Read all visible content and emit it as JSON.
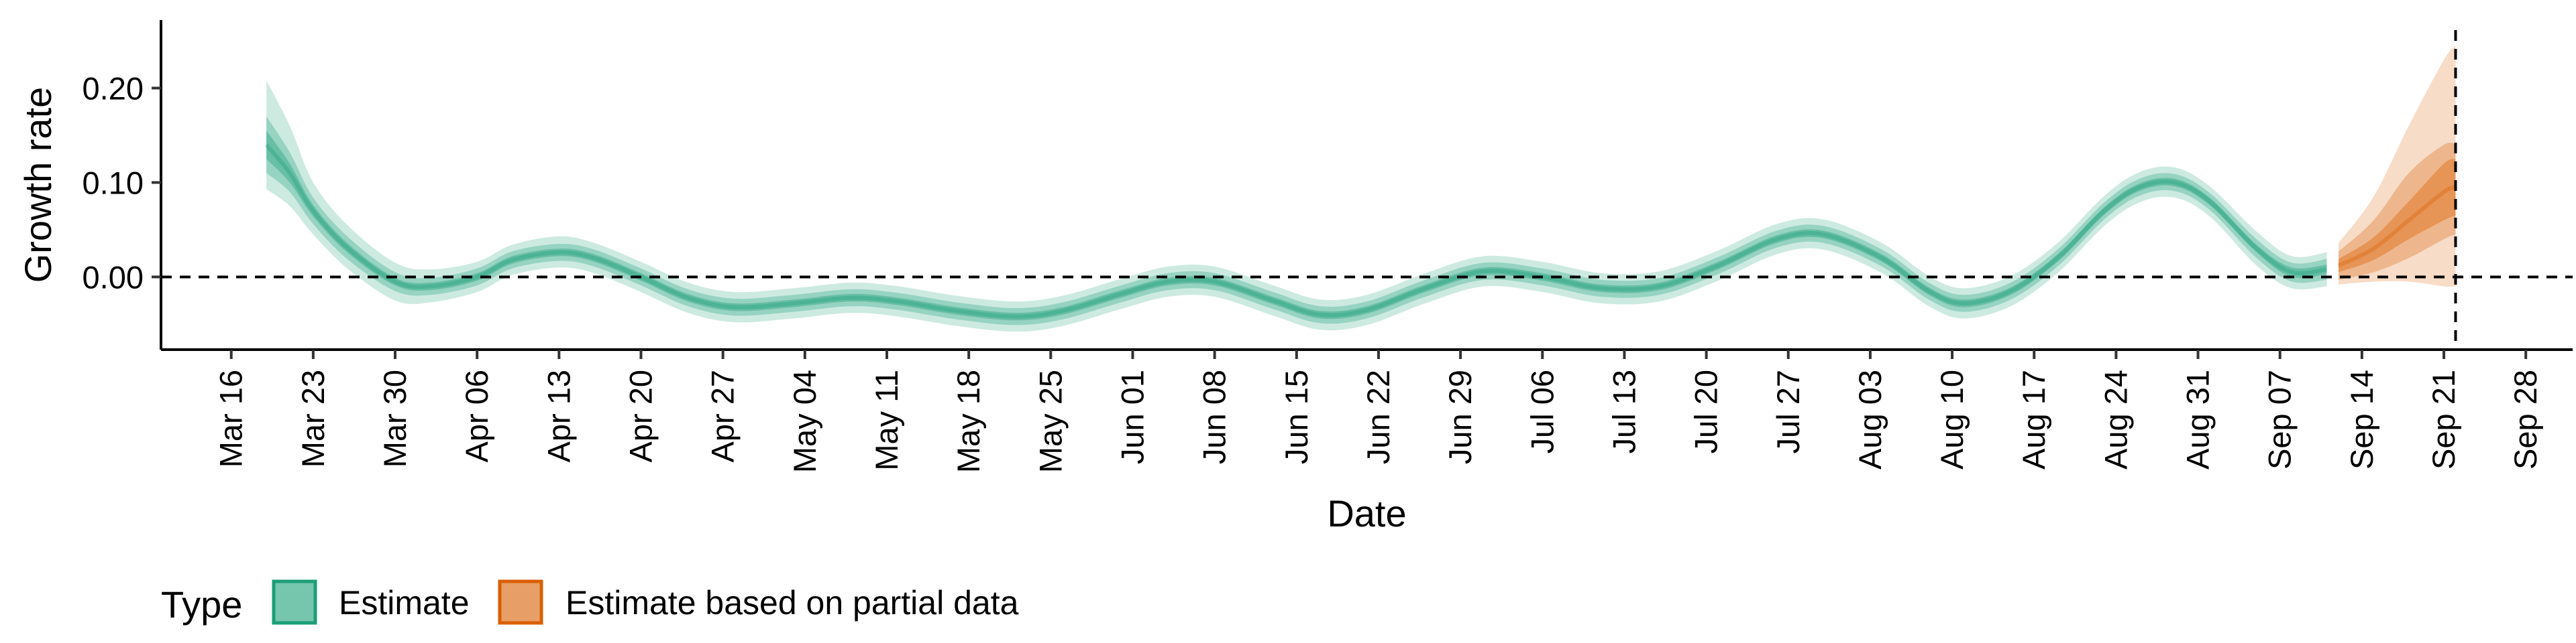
{
  "chart_data": {
    "type": "area",
    "xlabel": "Date",
    "ylabel": "Growth rate",
    "x_range": [
      "2020-03-10",
      "2020-10-02"
    ],
    "ylim": [
      -0.077,
      0.272
    ],
    "y_ticks": [
      0.0,
      0.1,
      0.2
    ],
    "y_tick_labels": [
      "0.00",
      "0.10",
      "0.20"
    ],
    "x_ticks": [
      "2020-03-16",
      "2020-03-23",
      "2020-03-30",
      "2020-04-06",
      "2020-04-13",
      "2020-04-20",
      "2020-04-27",
      "2020-05-04",
      "2020-05-11",
      "2020-05-18",
      "2020-05-25",
      "2020-06-01",
      "2020-06-08",
      "2020-06-15",
      "2020-06-22",
      "2020-06-29",
      "2020-07-06",
      "2020-07-13",
      "2020-07-20",
      "2020-07-27",
      "2020-08-03",
      "2020-08-10",
      "2020-08-17",
      "2020-08-24",
      "2020-08-31",
      "2020-09-07",
      "2020-09-14",
      "2020-09-21",
      "2020-09-28"
    ],
    "x_tick_labels": [
      "Mar 16",
      "Mar 23",
      "Mar 30",
      "Apr 06",
      "Apr 13",
      "Apr 20",
      "Apr 27",
      "May 04",
      "May 11",
      "May 18",
      "May 25",
      "Jun 01",
      "Jun 08",
      "Jun 15",
      "Jun 22",
      "Jun 29",
      "Jul 06",
      "Jul 13",
      "Jul 20",
      "Jul 27",
      "Aug 03",
      "Aug 10",
      "Aug 17",
      "Aug 24",
      "Aug 31",
      "Sep 07",
      "Sep 14",
      "Sep 21",
      "Sep 28"
    ],
    "hline_y": 0.0,
    "vline_x": "2020-09-22",
    "legend": {
      "title": "Type",
      "position": "bottom-left"
    },
    "grid": false,
    "series": [
      {
        "name": "Estimate",
        "color": "#1b9e77",
        "points": [
          {
            "x": "2020-03-19",
            "median": 0.14,
            "q25": [
              0.125,
              0.155
            ],
            "q75": [
              0.11,
              0.17
            ],
            "q90": [
              0.093,
              0.208
            ]
          },
          {
            "x": "2020-03-21",
            "median": 0.11,
            "q25": [
              0.1,
              0.12
            ],
            "q75": [
              0.09,
              0.132
            ],
            "q90": [
              0.075,
              0.16
            ]
          },
          {
            "x": "2020-03-23",
            "median": 0.07,
            "q25": [
              0.064,
              0.076
            ],
            "q75": [
              0.056,
              0.084
            ],
            "q90": [
              0.045,
              0.1
            ]
          },
          {
            "x": "2020-03-26",
            "median": 0.03,
            "q25": [
              0.025,
              0.035
            ],
            "q75": [
              0.018,
              0.042
            ],
            "q90": [
              0.008,
              0.054
            ]
          },
          {
            "x": "2020-03-30",
            "median": -0.005,
            "q25": [
              -0.009,
              -0.001
            ],
            "q75": [
              -0.015,
              0.005
            ],
            "q90": [
              -0.025,
              0.015
            ]
          },
          {
            "x": "2020-04-02",
            "median": -0.01,
            "q25": [
              -0.014,
              -0.006
            ],
            "q75": [
              -0.019,
              -0.001
            ],
            "q90": [
              -0.027,
              0.008
            ]
          },
          {
            "x": "2020-04-06",
            "median": 0.0,
            "q25": [
              -0.004,
              0.004
            ],
            "q75": [
              -0.009,
              0.009
            ],
            "q90": [
              -0.016,
              0.016
            ]
          },
          {
            "x": "2020-04-09",
            "median": 0.018,
            "q25": [
              0.014,
              0.022
            ],
            "q75": [
              0.009,
              0.027
            ],
            "q90": [
              0.002,
              0.034
            ]
          },
          {
            "x": "2020-04-13",
            "median": 0.026,
            "q25": [
              0.022,
              0.03
            ],
            "q75": [
              0.017,
              0.035
            ],
            "q90": [
              0.01,
              0.043
            ]
          },
          {
            "x": "2020-04-16",
            "median": 0.02,
            "q25": [
              0.016,
              0.024
            ],
            "q75": [
              0.011,
              0.029
            ],
            "q90": [
              0.004,
              0.036
            ]
          },
          {
            "x": "2020-04-20",
            "median": 0.0,
            "q25": [
              -0.004,
              0.004
            ],
            "q75": [
              -0.009,
              0.009
            ],
            "q90": [
              -0.016,
              0.016
            ]
          },
          {
            "x": "2020-04-24",
            "median": -0.022,
            "q25": [
              -0.026,
              -0.018
            ],
            "q75": [
              -0.031,
              -0.013
            ],
            "q90": [
              -0.038,
              -0.006
            ]
          },
          {
            "x": "2020-04-28",
            "median": -0.032,
            "q25": [
              -0.036,
              -0.028
            ],
            "q75": [
              -0.041,
              -0.023
            ],
            "q90": [
              -0.048,
              -0.016
            ]
          },
          {
            "x": "2020-05-03",
            "median": -0.028,
            "q25": [
              -0.032,
              -0.024
            ],
            "q75": [
              -0.037,
              -0.019
            ],
            "q90": [
              -0.044,
              -0.012
            ]
          },
          {
            "x": "2020-05-08",
            "median": -0.022,
            "q25": [
              -0.026,
              -0.018
            ],
            "q75": [
              -0.031,
              -0.013
            ],
            "q90": [
              -0.038,
              -0.006
            ]
          },
          {
            "x": "2020-05-12",
            "median": -0.026,
            "q25": [
              -0.03,
              -0.022
            ],
            "q75": [
              -0.035,
              -0.017
            ],
            "q90": [
              -0.042,
              -0.01
            ]
          },
          {
            "x": "2020-05-17",
            "median": -0.036,
            "q25": [
              -0.04,
              -0.032
            ],
            "q75": [
              -0.045,
              -0.027
            ],
            "q90": [
              -0.052,
              -0.02
            ]
          },
          {
            "x": "2020-05-22",
            "median": -0.042,
            "q25": [
              -0.046,
              -0.038
            ],
            "q75": [
              -0.051,
              -0.033
            ],
            "q90": [
              -0.058,
              -0.026
            ]
          },
          {
            "x": "2020-05-26",
            "median": -0.036,
            "q25": [
              -0.04,
              -0.032
            ],
            "q75": [
              -0.045,
              -0.027
            ],
            "q90": [
              -0.052,
              -0.02
            ]
          },
          {
            "x": "2020-05-31",
            "median": -0.018,
            "q25": [
              -0.022,
              -0.014
            ],
            "q75": [
              -0.027,
              -0.009
            ],
            "q90": [
              -0.034,
              -0.002
            ]
          },
          {
            "x": "2020-06-04",
            "median": -0.005,
            "q25": [
              -0.009,
              -0.001
            ],
            "q75": [
              -0.014,
              0.004
            ],
            "q90": [
              -0.021,
              0.011
            ]
          },
          {
            "x": "2020-06-08",
            "median": -0.005,
            "q25": [
              -0.009,
              -0.001
            ],
            "q75": [
              -0.014,
              0.004
            ],
            "q90": [
              -0.021,
              0.011
            ]
          },
          {
            "x": "2020-06-13",
            "median": -0.025,
            "q25": [
              -0.029,
              -0.021
            ],
            "q75": [
              -0.034,
              -0.016
            ],
            "q90": [
              -0.041,
              -0.009
            ]
          },
          {
            "x": "2020-06-17",
            "median": -0.04,
            "q25": [
              -0.044,
              -0.036
            ],
            "q75": [
              -0.049,
              -0.031
            ],
            "q90": [
              -0.056,
              -0.024
            ]
          },
          {
            "x": "2020-06-21",
            "median": -0.035,
            "q25": [
              -0.039,
              -0.031
            ],
            "q75": [
              -0.044,
              -0.026
            ],
            "q90": [
              -0.051,
              -0.019
            ]
          },
          {
            "x": "2020-06-26",
            "median": -0.012,
            "q25": [
              -0.016,
              -0.008
            ],
            "q75": [
              -0.021,
              -0.003
            ],
            "q90": [
              -0.028,
              0.004
            ]
          },
          {
            "x": "2020-07-01",
            "median": 0.006,
            "q25": [
              0.002,
              0.01
            ],
            "q75": [
              -0.003,
              0.015
            ],
            "q90": [
              -0.01,
              0.022
            ]
          },
          {
            "x": "2020-07-06",
            "median": 0.0,
            "q25": [
              -0.004,
              0.004
            ],
            "q75": [
              -0.009,
              0.009
            ],
            "q90": [
              -0.016,
              0.016
            ]
          },
          {
            "x": "2020-07-11",
            "median": -0.012,
            "q25": [
              -0.016,
              -0.008
            ],
            "q75": [
              -0.021,
              -0.003
            ],
            "q90": [
              -0.028,
              0.004
            ]
          },
          {
            "x": "2020-07-16",
            "median": -0.01,
            "q25": [
              -0.014,
              -0.006
            ],
            "q75": [
              -0.019,
              -0.001
            ],
            "q90": [
              -0.026,
              0.006
            ]
          },
          {
            "x": "2020-07-21",
            "median": 0.012,
            "q25": [
              0.008,
              0.016
            ],
            "q75": [
              0.003,
              0.021
            ],
            "q90": [
              -0.004,
              0.028
            ]
          },
          {
            "x": "2020-07-26",
            "median": 0.04,
            "q25": [
              0.036,
              0.044
            ],
            "q75": [
              0.031,
              0.049
            ],
            "q90": [
              0.024,
              0.056
            ]
          },
          {
            "x": "2020-07-30",
            "median": 0.045,
            "q25": [
              0.041,
              0.049
            ],
            "q75": [
              0.036,
              0.054
            ],
            "q90": [
              0.029,
              0.061
            ]
          },
          {
            "x": "2020-08-04",
            "median": 0.02,
            "q25": [
              0.016,
              0.024
            ],
            "q75": [
              0.011,
              0.029
            ],
            "q90": [
              0.004,
              0.036
            ]
          },
          {
            "x": "2020-08-08",
            "median": -0.015,
            "q25": [
              -0.019,
              -0.011
            ],
            "q75": [
              -0.024,
              -0.006
            ],
            "q90": [
              -0.031,
              0.001
            ]
          },
          {
            "x": "2020-08-11",
            "median": -0.028,
            "q25": [
              -0.032,
              -0.024
            ],
            "q75": [
              -0.037,
              -0.019
            ],
            "q90": [
              -0.044,
              -0.012
            ]
          },
          {
            "x": "2020-08-15",
            "median": -0.015,
            "q25": [
              -0.019,
              -0.011
            ],
            "q75": [
              -0.024,
              -0.006
            ],
            "q90": [
              -0.031,
              0.001
            ]
          },
          {
            "x": "2020-08-19",
            "median": 0.02,
            "q25": [
              0.016,
              0.024
            ],
            "q75": [
              0.011,
              0.029
            ],
            "q90": [
              0.004,
              0.036
            ]
          },
          {
            "x": "2020-08-23",
            "median": 0.07,
            "q25": [
              0.066,
              0.074
            ],
            "q75": [
              0.061,
              0.079
            ],
            "q90": [
              0.054,
              0.086
            ]
          },
          {
            "x": "2020-08-26",
            "median": 0.095,
            "q25": [
              0.091,
              0.099
            ],
            "q75": [
              0.086,
              0.104
            ],
            "q90": [
              0.079,
              0.111
            ]
          },
          {
            "x": "2020-08-29",
            "median": 0.1,
            "q25": [
              0.096,
              0.104
            ],
            "q75": [
              0.091,
              0.109
            ],
            "q90": [
              0.084,
              0.116
            ]
          },
          {
            "x": "2020-09-01",
            "median": 0.08,
            "q25": [
              0.076,
              0.084
            ],
            "q75": [
              0.071,
              0.089
            ],
            "q90": [
              0.064,
              0.096
            ]
          },
          {
            "x": "2020-09-05",
            "median": 0.03,
            "q25": [
              0.026,
              0.034
            ],
            "q75": [
              0.02,
              0.04
            ],
            "q90": [
              0.012,
              0.048
            ]
          },
          {
            "x": "2020-09-08",
            "median": 0.005,
            "q25": [
              0.0,
              0.01
            ],
            "q75": [
              -0.005,
              0.015
            ],
            "q90": [
              -0.012,
              0.022
            ]
          },
          {
            "x": "2020-09-11",
            "median": 0.008,
            "q25": [
              0.003,
              0.013
            ],
            "q75": [
              -0.003,
              0.019
            ],
            "q90": [
              -0.01,
              0.026
            ]
          }
        ]
      },
      {
        "name": "Estimate based on partial data",
        "color": "#d95f02",
        "points": [
          {
            "x": "2020-09-12",
            "median": 0.012,
            "q25": [
              0.005,
              0.019
            ],
            "q75": [
              -0.003,
              0.027
            ],
            "q90": [
              -0.008,
              0.036
            ]
          },
          {
            "x": "2020-09-15",
            "median": 0.03,
            "q25": [
              0.018,
              0.042
            ],
            "q75": [
              0.005,
              0.06
            ],
            "q90": [
              -0.005,
              0.085
            ]
          },
          {
            "x": "2020-09-18",
            "median": 0.06,
            "q25": [
              0.04,
              0.08
            ],
            "q75": [
              0.02,
              0.11
            ],
            "q90": [
              -0.005,
              0.16
            ]
          },
          {
            "x": "2020-09-21",
            "median": 0.09,
            "q25": [
              0.06,
              0.12
            ],
            "q75": [
              0.04,
              0.14
            ],
            "q90": [
              -0.01,
              0.23
            ]
          },
          {
            "x": "2020-09-22",
            "median": 0.095,
            "q25": [
              0.065,
              0.125
            ],
            "q75": [
              0.045,
              0.14
            ],
            "q90": [
              -0.01,
              0.245
            ]
          }
        ]
      }
    ]
  }
}
